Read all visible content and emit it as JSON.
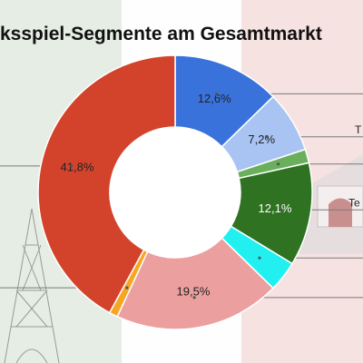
{
  "title": "ksspiel-Segmente am Gesamtmarkt",
  "chart_data": {
    "type": "pie",
    "donut": true,
    "categories": [
      "",
      "",
      "",
      "",
      "",
      "",
      "",
      ""
    ],
    "values": [
      12.6,
      7.2,
      1.6,
      12.1,
      3.6,
      19.5,
      1.0,
      41.8
    ],
    "value_labels": [
      "12,6%",
      "7,2%",
      "",
      "12,1%",
      "",
      "19,5%",
      "",
      "41,8%"
    ],
    "colors": [
      "#3a72dc",
      "#a9c4f3",
      "#6aaf5c",
      "#2f7322",
      "#22f0f0",
      "#ec9f9f",
      "#f6a624",
      "#d3432b"
    ],
    "legend_labels": [
      "",
      "T",
      "",
      "Te",
      "",
      "",
      "",
      ""
    ],
    "legend_placement": "right"
  }
}
